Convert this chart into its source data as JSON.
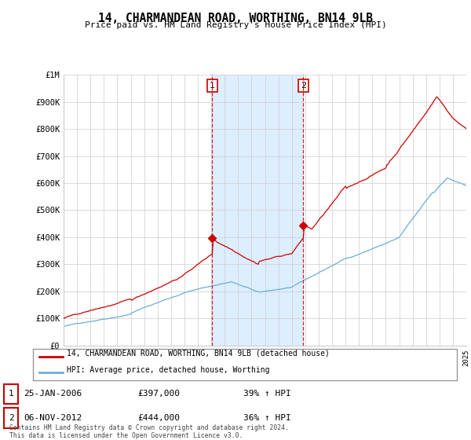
{
  "title": "14, CHARMANDEAN ROAD, WORTHING, BN14 9LB",
  "subtitle": "Price paid vs. HM Land Registry's House Price Index (HPI)",
  "ylabel_ticks": [
    "£0",
    "£100K",
    "£200K",
    "£300K",
    "£400K",
    "£500K",
    "£600K",
    "£700K",
    "£800K",
    "£900K",
    "£1M"
  ],
  "ylim": [
    0,
    1000000
  ],
  "ytick_vals": [
    0,
    100000,
    200000,
    300000,
    400000,
    500000,
    600000,
    700000,
    800000,
    900000,
    1000000
  ],
  "sale1_date": "25-JAN-2006",
  "sale1_price": 397000,
  "sale1_label": "39% ↑ HPI",
  "sale1_x": 2006.07,
  "sale2_date": "06-NOV-2012",
  "sale2_price": 444000,
  "sale2_label": "36% ↑ HPI",
  "sale2_x": 2012.85,
  "hpi_color": "#6baed6",
  "price_color": "#cc0000",
  "shade_color": "#ddeeff",
  "legend_label1": "14, CHARMANDEAN ROAD, WORTHING, BN14 9LB (detached house)",
  "legend_label2": "HPI: Average price, detached house, Worthing",
  "footnote": "Contains HM Land Registry data © Crown copyright and database right 2024.\nThis data is licensed under the Open Government Licence v3.0.",
  "xmin": 1995,
  "xmax": 2025
}
